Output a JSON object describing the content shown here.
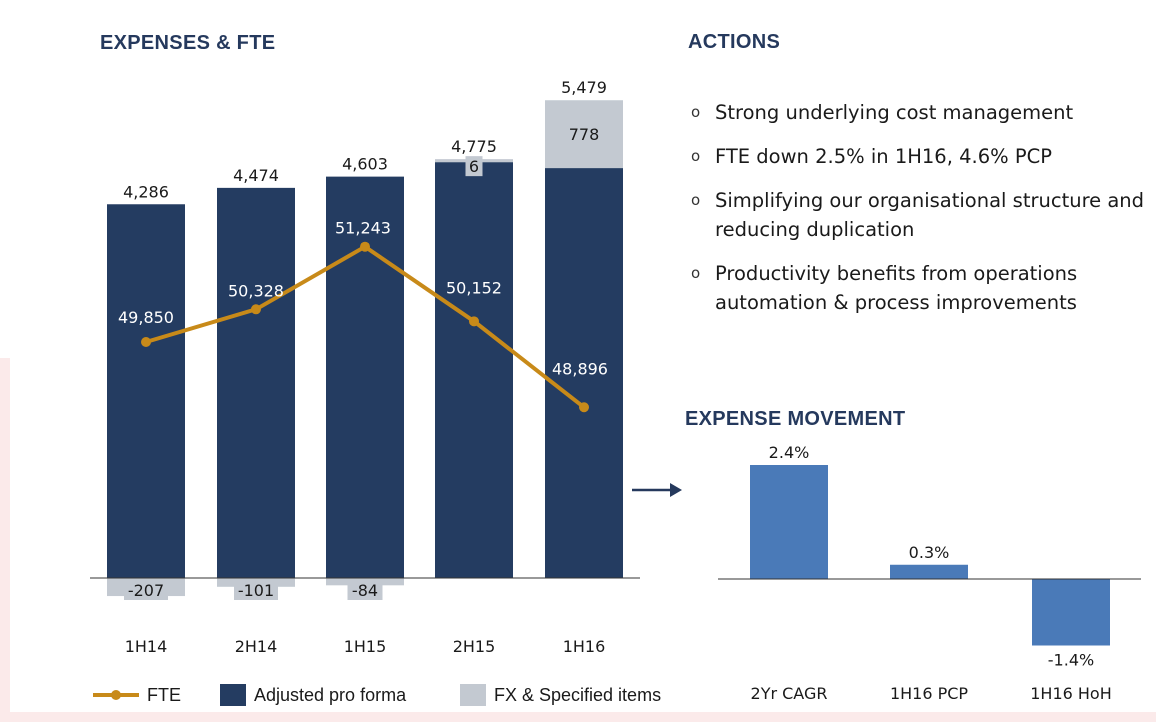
{
  "headings": {
    "left": "EXPENSES & FTE",
    "actions": "ACTIONS",
    "movement": "EXPENSE MOVEMENT"
  },
  "actions": [
    "Strong underlying cost management",
    "FTE down 2.5% in 1H16, 4.6% PCP",
    "Simplifying our organisational structure and reducing duplication",
    "Productivity benefits from operations automation & process improvements"
  ],
  "actions_bullet": "o",
  "legend": {
    "fte": "FTE",
    "adjusted": "Adjusted pro forma",
    "fx": "FX & Specified items"
  },
  "colors": {
    "heading": "#25395d",
    "adjusted": "#243c61",
    "fx": "#c3c9d1",
    "fte_line": "#c88a19",
    "movement_bar": "#4a7ab8"
  },
  "chart_data": [
    {
      "type": "bar",
      "title": "EXPENSES & FTE",
      "categories": [
        "1H14",
        "2H14",
        "1H15",
        "2H15",
        "1H16"
      ],
      "series": [
        {
          "name": "Adjusted pro forma",
          "values": [
            4286,
            4474,
            4603,
            4769,
            4701
          ]
        },
        {
          "name": "FX & Specified items",
          "values": [
            -207,
            -101,
            -84,
            6,
            778
          ],
          "labels": [
            "-207",
            "-101",
            "-84",
            "6",
            "778"
          ]
        },
        {
          "name": "FTE",
          "type": "line",
          "values": [
            49850,
            50328,
            51243,
            50152,
            48896
          ],
          "labels": [
            "49,850",
            "50,328",
            "51,243",
            "50,152",
            "48,896"
          ]
        }
      ],
      "totals": [
        "4,286",
        "4,474",
        "4,603",
        "4,775",
        "5,479"
      ],
      "legend_position": "bottom"
    },
    {
      "type": "bar",
      "title": "EXPENSE MOVEMENT",
      "categories": [
        "2Yr CAGR",
        "1H16 PCP",
        "1H16 HoH"
      ],
      "values": [
        2.4,
        0.3,
        -1.4
      ],
      "labels": [
        "2.4%",
        "0.3%",
        "-1.4%"
      ]
    }
  ]
}
